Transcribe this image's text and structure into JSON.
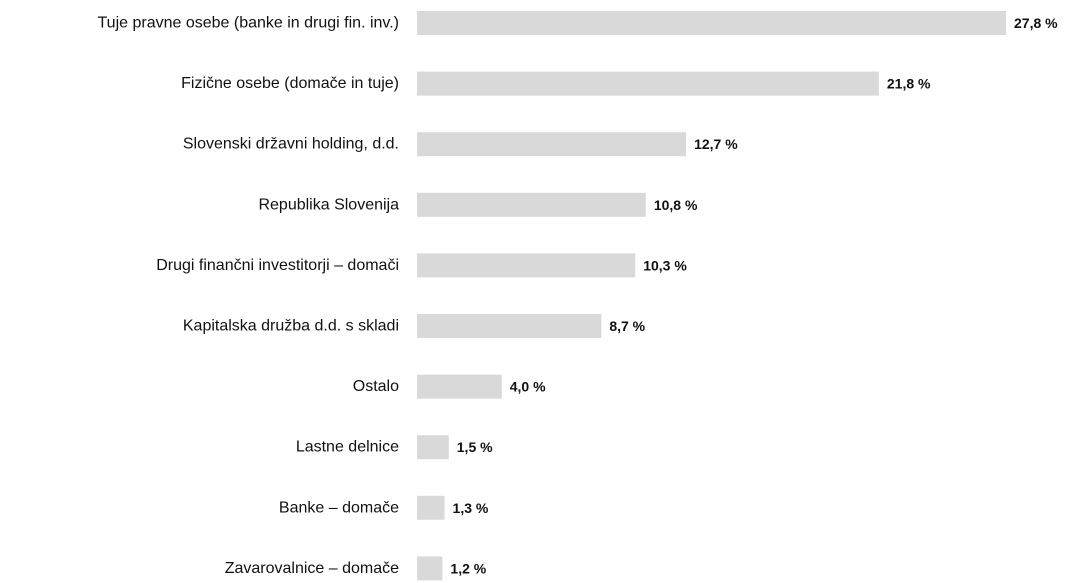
{
  "chart_data": {
    "type": "bar",
    "orientation": "horizontal",
    "categories": [
      "Tuje pravne osebe (banke in drugi fin. inv.)",
      "Fizične osebe (domače in tuje)",
      "Slovenski državni holding, d.d.",
      "Republika Slovenija",
      "Drugi finančni investitorji – domači",
      "Kapitalska družba d.d. s skladi",
      "Ostalo",
      "Lastne delnice",
      "Banke – domače",
      "Zavarovalnice – domače"
    ],
    "values": [
      27.8,
      21.8,
      12.7,
      10.8,
      10.3,
      8.7,
      4.0,
      1.5,
      1.3,
      1.2
    ],
    "value_labels": [
      "27,8 %",
      "21,8 %",
      "12,7 %",
      "10,8 %",
      "10,3 %",
      "8,7 %",
      "4,0 %",
      "1,5 %",
      "1,3 %",
      "1,2 %"
    ],
    "bar_color": "#d9d9d9",
    "title": "",
    "xlabel": "",
    "ylabel": "",
    "xlim": [
      0,
      27.8
    ],
    "grid": false,
    "legend": "none"
  }
}
